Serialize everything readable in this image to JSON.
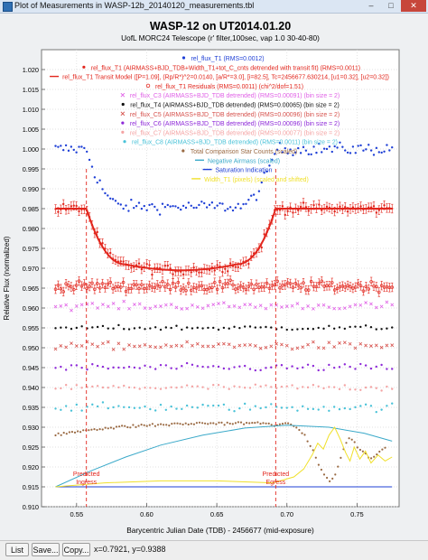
{
  "window": {
    "title": "Plot of Measurements in WASP-12b_20140120_measurements.tbl",
    "minimize_icon": "minimize-icon",
    "maximize_icon": "maximize-icon",
    "close_icon": "close-icon"
  },
  "footer": {
    "list_label": "List",
    "save_label": "Save...",
    "copy_label": "Copy...",
    "readout": "x=0.7921, y=0.9388"
  },
  "chart_data": {
    "type": "scatter",
    "title": "WASP-12 on UT2014.01.20",
    "subtitle": "UofL MORC24 Telescope (r' filter,100sec, vap 1.0 30-40-80)",
    "xlabel": "Barycentric Julian Date (TDB) - 2456677 (mid-exposure)",
    "ylabel": "Relative Flux (normalized)",
    "xlim": [
      0.525,
      0.78
    ],
    "ylim": [
      0.91,
      1.025
    ],
    "xticks": [
      0.55,
      0.6,
      0.65,
      0.7,
      0.75
    ],
    "xtick_labels": [
      "0.55",
      "0.60",
      "0.65",
      "0.70",
      "0.75"
    ],
    "yticks": [
      0.91,
      0.915,
      0.92,
      0.925,
      0.93,
      0.935,
      0.94,
      0.945,
      0.95,
      0.955,
      0.96,
      0.965,
      0.97,
      0.975,
      0.98,
      0.985,
      0.99,
      0.995,
      1.0,
      1.005,
      1.01,
      1.015,
      1.02
    ],
    "ytick_labels": [
      "0.910",
      "0.915",
      "0.920",
      "0.925",
      "0.930",
      "0.935",
      "0.940",
      "0.945",
      "0.950",
      "0.955",
      "0.960",
      "0.965",
      "0.970",
      "0.975",
      "0.980",
      "0.985",
      "0.990",
      "0.995",
      "1.000",
      "1.005",
      "1.010",
      "1.015",
      "1.020"
    ],
    "grid": true,
    "legend": "top",
    "legend_entries": [
      {
        "label": "rel_flux_T1 (RMS=0.0012)",
        "color": "#1e3fd6",
        "marker": "dot"
      },
      {
        "label": "rel_flux_T1 (AIRMASS+BJD_TDB+Width_T1+tot_C_cnts detrended with transit fit) (RMS=0.0011)",
        "color": "#e2261d",
        "marker": "dot"
      },
      {
        "label": "rel_flux_T1 Transit Model ([P=1.09], (Rp/R*)^2=0.0140, [a/R*=3.0], [i=82.5], Tc=2456677.630214, [u1=0.32], [u2=0.32])",
        "color": "#e2261d",
        "marker": "line"
      },
      {
        "label": "rel_flux_T1 Residuals (RMS=0.0011) (chi^2/dof=1.51)",
        "color": "#e2261d",
        "marker": "circle"
      },
      {
        "label": "rel_flux_C3 (AIRMASS+BJD_TDB detrended) (RMS=0.00091) (bin size = 2)",
        "color": "#e061e6",
        "marker": "x"
      },
      {
        "label": "rel_flux_T4 (AIRMASS+BJD_TDB detrended) (RMS=0.00065) (bin size = 2)",
        "color": "#111111",
        "marker": "dot"
      },
      {
        "label": "rel_flux_C5 (AIRMASS+BJD_TDB detrended) (RMS=0.00096) (bin size = 2)",
        "color": "#d6504b",
        "marker": "x"
      },
      {
        "label": "rel_flux_C6 (AIRMASS+BJD_TDB detrended) (RMS=0.00096) (bin size = 2)",
        "color": "#8d28d8",
        "marker": "dot"
      },
      {
        "label": "rel_flux_C7 (AIRMASS+BJD_TDB detrended) (RMS=0.00077) (bin size = 2)",
        "color": "#f4a3a3",
        "marker": "dot"
      },
      {
        "label": "rel_flux_C8 (AIRMASS+BJD_TDB detrended) (RMS=0.0011) (bin size = 2)",
        "color": "#49c2d8",
        "marker": "dot"
      },
      {
        "label": "Total Comparison Star Counts (scaled)",
        "color": "#9a6a43",
        "marker": "dot"
      },
      {
        "label": "Negative Airmass (scaled)",
        "color": "#3aa9c9",
        "marker": "line"
      },
      {
        "label": "Saturation Indication",
        "color": "#1e3fd6",
        "marker": "line"
      },
      {
        "label": "Width_T1 (pixels) (scaled and shifted)",
        "color": "#f0e02a",
        "marker": "line"
      }
    ],
    "annotations": [
      {
        "x": 0.557,
        "y": 0.9175,
        "label_top": "Predicted",
        "label_bottom": "Ingress"
      },
      {
        "x": 0.692,
        "y": 0.9175,
        "label_top": "Predicted",
        "label_bottom": "Egress"
      }
    ],
    "transit_model": {
      "baseline": 0.985,
      "depth": 0.014,
      "ingress_start": 0.557,
      "ingress_end": 0.585,
      "egress_start": 0.664,
      "egress_end": 0.692,
      "color": "#e2261d"
    },
    "series": [
      {
        "name": "rel_flux_T1",
        "marker": "dot",
        "color": "#1e3fd6",
        "errorbars": false,
        "out_level": 1.0,
        "in_level": 0.9855,
        "scatter": 0.0015,
        "x_start": 0.535,
        "x_end": 0.775,
        "n": 130
      },
      {
        "name": "rel_flux_T1 (detrended)",
        "marker": "dot",
        "color": "#e2261d",
        "errorbars": true,
        "follows_model": true,
        "level": 0.985,
        "scatter": 0.0012,
        "x_start": 0.535,
        "x_end": 0.775,
        "n": 130
      },
      {
        "name": "rel_flux_T1 Residuals",
        "marker": "circle",
        "color": "#e2261d",
        "errorbars": true,
        "level": 0.9655,
        "scatter": 0.0012,
        "x_start": 0.535,
        "x_end": 0.775,
        "n": 130
      },
      {
        "name": "rel_flux_C3",
        "marker": "x",
        "color": "#e061e6",
        "level": 0.9605,
        "scatter": 0.0009,
        "x_start": 0.535,
        "x_end": 0.775,
        "n": 65
      },
      {
        "name": "rel_flux_T4",
        "marker": "dot",
        "color": "#111111",
        "level": 0.955,
        "scatter": 0.0006,
        "x_start": 0.535,
        "x_end": 0.775,
        "n": 65
      },
      {
        "name": "rel_flux_C5",
        "marker": "x",
        "color": "#d6504b",
        "level": 0.9505,
        "scatter": 0.0009,
        "x_start": 0.535,
        "x_end": 0.775,
        "n": 65
      },
      {
        "name": "rel_flux_C6",
        "marker": "dot",
        "color": "#8d28d8",
        "level": 0.945,
        "scatter": 0.0009,
        "x_start": 0.535,
        "x_end": 0.775,
        "n": 65
      },
      {
        "name": "rel_flux_C7",
        "marker": "dot",
        "color": "#f4a3a3",
        "level": 0.94,
        "scatter": 0.0008,
        "x_start": 0.535,
        "x_end": 0.775,
        "n": 65
      },
      {
        "name": "rel_flux_C8",
        "marker": "dot",
        "color": "#49c2d8",
        "level": 0.935,
        "scatter": 0.001,
        "x_start": 0.535,
        "x_end": 0.775,
        "n": 65
      },
      {
        "name": "Total Comparison Star Counts",
        "marker": "dot",
        "color": "#9a6a43",
        "points": [
          [
            0.535,
            0.928
          ],
          [
            0.56,
            0.9295
          ],
          [
            0.6,
            0.9305
          ],
          [
            0.64,
            0.931
          ],
          [
            0.68,
            0.931
          ],
          [
            0.705,
            0.9305
          ],
          [
            0.71,
            0.929
          ],
          [
            0.715,
            0.9265
          ],
          [
            0.72,
            0.923
          ],
          [
            0.725,
            0.919
          ],
          [
            0.73,
            0.916
          ],
          [
            0.735,
            0.9185
          ],
          [
            0.74,
            0.924
          ],
          [
            0.745,
            0.928
          ],
          [
            0.75,
            0.925
          ],
          [
            0.76,
            0.922
          ],
          [
            0.77,
            0.925
          ]
        ],
        "scatter": 0.0004
      },
      {
        "name": "Negative Airmass",
        "marker": "line",
        "color": "#3aa9c9",
        "points": [
          [
            0.535,
            0.915
          ],
          [
            0.56,
            0.919
          ],
          [
            0.585,
            0.9225
          ],
          [
            0.61,
            0.9255
          ],
          [
            0.64,
            0.928
          ],
          [
            0.67,
            0.9298
          ],
          [
            0.7,
            0.9305
          ],
          [
            0.73,
            0.93
          ],
          [
            0.755,
            0.9285
          ],
          [
            0.775,
            0.9265
          ]
        ]
      },
      {
        "name": "Saturation Indication",
        "marker": "line",
        "color": "#1e3fd6",
        "points": [
          [
            0.535,
            0.915
          ],
          [
            0.775,
            0.915
          ]
        ]
      },
      {
        "name": "Width_T1",
        "marker": "line",
        "color": "#f0e02a",
        "points": [
          [
            0.535,
            0.915
          ],
          [
            0.57,
            0.916
          ],
          [
            0.61,
            0.9165
          ],
          [
            0.65,
            0.9165
          ],
          [
            0.69,
            0.916
          ],
          [
            0.705,
            0.9175
          ],
          [
            0.712,
            0.9195
          ],
          [
            0.718,
            0.923
          ],
          [
            0.722,
            0.926
          ],
          [
            0.726,
            0.9245
          ],
          [
            0.73,
            0.928
          ],
          [
            0.734,
            0.93
          ],
          [
            0.738,
            0.927
          ],
          [
            0.742,
            0.9235
          ],
          [
            0.745,
            0.9215
          ],
          [
            0.748,
            0.925
          ],
          [
            0.752,
            0.922
          ],
          [
            0.756,
            0.924
          ],
          [
            0.76,
            0.921
          ],
          [
            0.765,
            0.923
          ],
          [
            0.77,
            0.9215
          ],
          [
            0.775,
            0.9225
          ]
        ]
      }
    ]
  }
}
